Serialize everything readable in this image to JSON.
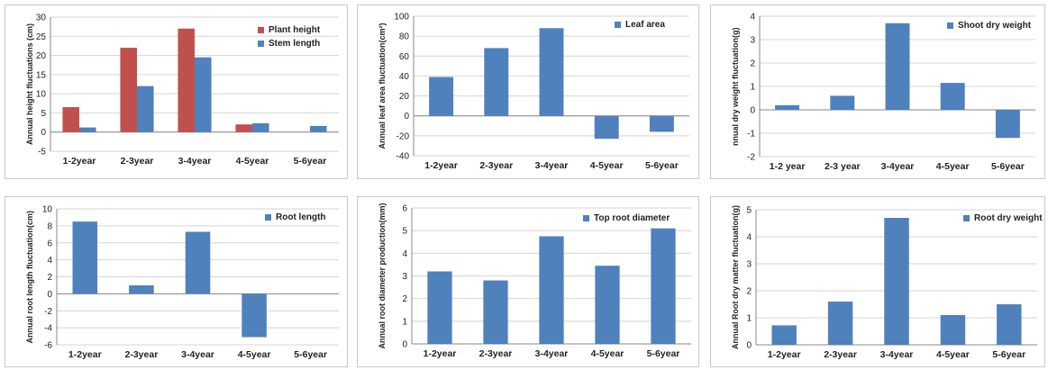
{
  "colors": {
    "red": "#c0504d",
    "blue": "#4f81bd"
  },
  "chart_data": [
    {
      "type": "bar",
      "categories": [
        "1-2year",
        "2-3year",
        "3-4year",
        "4-5year",
        "5-6year"
      ],
      "series": [
        {
          "name": "Plant height",
          "values": [
            6.5,
            22,
            27,
            2,
            0
          ]
        },
        {
          "name": "Stem length",
          "values": [
            1.2,
            12,
            19.5,
            2.3,
            1.6
          ]
        }
      ],
      "ylabel": "Annual height fluctuations (cm)",
      "ylim": [
        -5,
        30
      ],
      "yticks": [
        -5,
        0,
        5,
        10,
        15,
        20,
        25,
        30
      ],
      "legend": "top-right"
    },
    {
      "type": "bar",
      "categories": [
        "1-2year",
        "2-3year",
        "3-4year",
        "4-5year",
        "5-6year"
      ],
      "series": [
        {
          "name": "Leaf area",
          "values": [
            39,
            68,
            88,
            -23,
            -16
          ]
        }
      ],
      "ylabel": "Annual leaf area fluctuation(cm²)",
      "ylim": [
        -40,
        100
      ],
      "yticks": [
        -40,
        -20,
        0,
        20,
        40,
        60,
        80,
        100
      ],
      "legend": "top-right"
    },
    {
      "type": "bar",
      "categories": [
        "1-2 year",
        "2-3 year",
        "3-4year",
        "4-5year",
        "5-6year"
      ],
      "series": [
        {
          "name": "Shoot dry weight",
          "values": [
            0.2,
            0.6,
            3.7,
            1.15,
            -1.2
          ]
        }
      ],
      "ylabel": "nnual dry weight fluctuation(g)",
      "ylim": [
        -2,
        4
      ],
      "yticks": [
        -2,
        -1,
        0,
        1,
        2,
        3,
        4
      ],
      "legend": "top-right"
    },
    {
      "type": "bar",
      "categories": [
        "1-2year",
        "2-3year",
        "3-4year",
        "4-5year",
        "5-6year"
      ],
      "series": [
        {
          "name": "Root length",
          "values": [
            8.5,
            1,
            7.3,
            -5.1,
            0
          ]
        }
      ],
      "ylabel": "Annual root length fluctuation(cm)",
      "ylim": [
        -6,
        10
      ],
      "yticks": [
        -6,
        -4,
        -2,
        0,
        2,
        4,
        6,
        8,
        10
      ],
      "legend": "top-right"
    },
    {
      "type": "bar",
      "categories": [
        "1-2year",
        "2-3year",
        "3-4year",
        "4-5year",
        "5-6year"
      ],
      "series": [
        {
          "name": "Top root diameter",
          "values": [
            3.2,
            2.8,
            4.75,
            3.45,
            5.1
          ]
        }
      ],
      "ylabel": "Annual root diameter production(mm)",
      "ylim": [
        0,
        6
      ],
      "yticks": [
        0,
        1,
        2,
        3,
        4,
        5,
        6
      ],
      "legend": "top-right"
    },
    {
      "type": "bar",
      "categories": [
        "1-2year",
        "2-3year",
        "3-4year",
        "4-5year",
        "5-6year"
      ],
      "series": [
        {
          "name": "Root dry weight",
          "values": [
            0.72,
            1.6,
            4.7,
            1.1,
            1.5
          ]
        }
      ],
      "ylabel": "Annual Root dry matter fluctuation(g)",
      "ylim": [
        0,
        5
      ],
      "yticks": [
        0,
        1,
        2,
        3,
        4,
        5
      ],
      "legend": "top-right"
    }
  ]
}
